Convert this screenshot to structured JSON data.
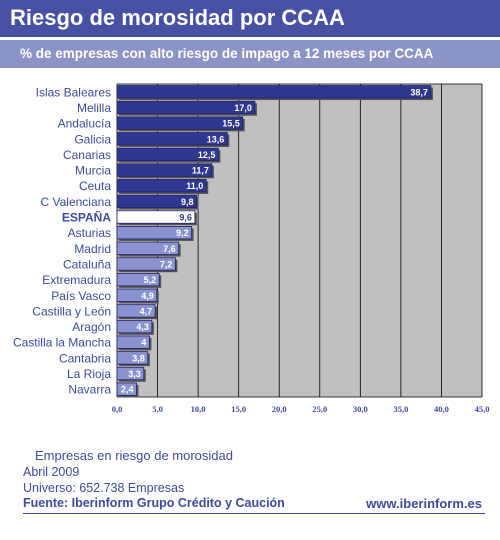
{
  "header": {
    "title": "Riesgo de morosidad por CCAA",
    "subtitle": "% de empresas con alto riesgo de impago a 12 meses por CCAA"
  },
  "chart_data": {
    "type": "bar",
    "orientation": "horizontal",
    "categories": [
      "Islas Baleares",
      "Melilla",
      "Andalucía",
      "Galicia",
      "Canarias",
      "Murcia",
      "Ceuta",
      "C Valenciana",
      "ESPAÑA",
      "Asturias",
      "Madrid",
      "Cataluña",
      "Extremadura",
      "País Vasco",
      "Castilla y León",
      "Aragón",
      "Castilla la Mancha",
      "Cantabria",
      "La Rioja",
      "Navarra"
    ],
    "values": [
      38.7,
      17.0,
      15.5,
      13.6,
      12.5,
      11.7,
      11.0,
      9.8,
      9.6,
      9.2,
      7.6,
      7.2,
      5.2,
      4.9,
      4.7,
      4.3,
      4,
      3.8,
      3.3,
      2.4
    ],
    "value_labels": [
      "38,7",
      "17,0",
      "15,5",
      "13,6",
      "12,5",
      "11,7",
      "11,0",
      "9,8",
      "9,6",
      "9,2",
      "7,6",
      "7,2",
      "5,2",
      "4,9",
      "4,7",
      "4,3",
      "4",
      "3,8",
      "3,3",
      "2,4"
    ],
    "xlim": [
      0,
      45
    ],
    "x_ticks": [
      "0,0",
      "5,0",
      "10,0",
      "15,0",
      "20,0",
      "25,0",
      "30,0",
      "35,0",
      "40,0",
      "45,0"
    ],
    "grid": true,
    "colors": {
      "above_average": "#2f3790",
      "average": "#ffffff",
      "below_average": "#8a93d0",
      "plot_background": "#c0c0c0",
      "label_text": "#3d4ba0"
    }
  },
  "footer": {
    "note1": "Empresas en riesgo de morosidad",
    "note2": "Abril 2009",
    "note3": "Universo: 652.738 Empresas",
    "source": "Fuente: Iberinform Grupo Crédito y Caución",
    "website": "www.iberinform.es"
  }
}
